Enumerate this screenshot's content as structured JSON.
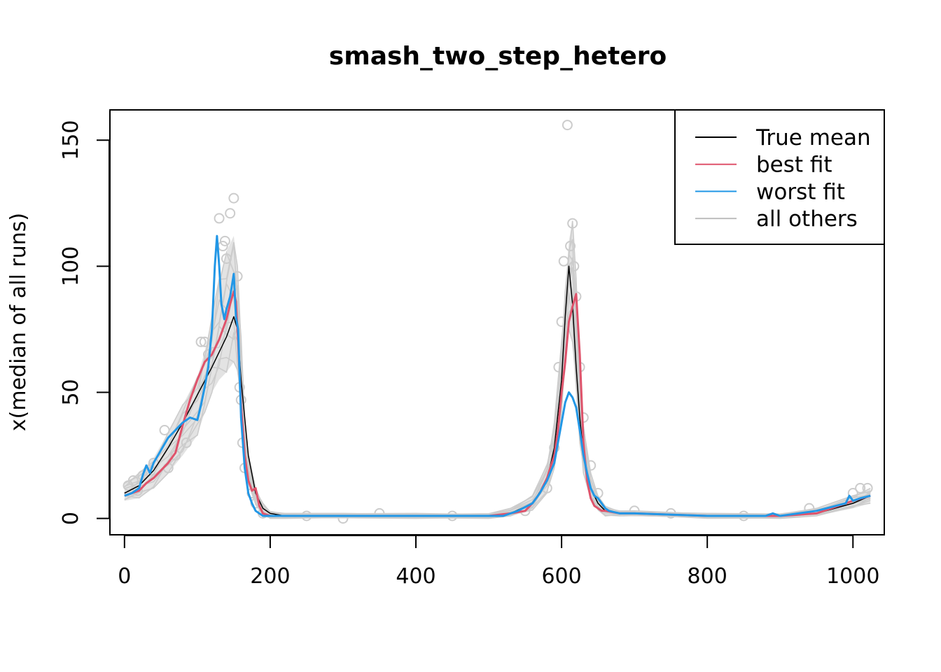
{
  "chart_data": {
    "type": "line",
    "title": "smash_two_step_hetero",
    "xlabel": "",
    "ylabel": "x(median of all runs)",
    "xlim": [
      -20,
      1043
    ],
    "ylim": [
      -6.5,
      162
    ],
    "xticks": [
      "0",
      "200",
      "400",
      "600",
      "800",
      "1000"
    ],
    "yticks": [
      "0",
      "50",
      "100",
      "150"
    ],
    "grid": false,
    "legend_position": "top-right",
    "legend": [
      {
        "label": "True mean",
        "color": "#000000"
      },
      {
        "label": "best fit",
        "color": "#DF536B"
      },
      {
        "label": "worst fit",
        "color": "#2297E6"
      },
      {
        "label": "all others",
        "color": "#BEBEBE"
      }
    ],
    "series": [
      {
        "name": "True mean",
        "color": "#000000",
        "x": [
          0,
          20,
          40,
          60,
          80,
          100,
          120,
          130,
          140,
          150,
          155,
          160,
          170,
          180,
          190,
          200,
          220,
          300,
          400,
          500,
          530,
          560,
          580,
          590,
          600,
          605,
          610,
          615,
          620,
          625,
          630,
          640,
          650,
          660,
          680,
          700,
          800,
          900,
          950,
          1000,
          1024
        ],
        "y": [
          10,
          13,
          19,
          28,
          38,
          49,
          60,
          66,
          72,
          80,
          75,
          55,
          25,
          10,
          4,
          2,
          1,
          1,
          1,
          1,
          2,
          6,
          15,
          28,
          55,
          80,
          100,
          85,
          60,
          40,
          25,
          12,
          6,
          3,
          2,
          2,
          1,
          1,
          2,
          6,
          9
        ]
      },
      {
        "name": "best fit",
        "color": "#DF536B",
        "x": [
          0,
          10,
          20,
          30,
          40,
          50,
          60,
          70,
          80,
          90,
          100,
          110,
          120,
          130,
          135,
          140,
          145,
          150,
          153,
          156,
          160,
          165,
          170,
          175,
          180,
          185,
          190,
          200,
          220,
          300,
          400,
          500,
          530,
          550,
          560,
          570,
          580,
          590,
          595,
          600,
          605,
          610,
          615,
          620,
          625,
          630,
          635,
          640,
          645,
          650,
          655,
          660,
          680,
          700,
          800,
          900,
          950,
          1000,
          1024
        ],
        "y": [
          9,
          10,
          11,
          14,
          16,
          19,
          22,
          26,
          37,
          47,
          55,
          62,
          65,
          71,
          75,
          79,
          85,
          90,
          86,
          70,
          45,
          25,
          15,
          11,
          12,
          5,
          2,
          1,
          1,
          1,
          1,
          1,
          2,
          3,
          6,
          10,
          16,
          25,
          35,
          50,
          62,
          78,
          84,
          89,
          65,
          30,
          15,
          8,
          5,
          4,
          3,
          3,
          2,
          2,
          1,
          1,
          2,
          7,
          9
        ]
      },
      {
        "name": "worst fit",
        "color": "#2297E6",
        "x": [
          0,
          10,
          20,
          25,
          30,
          35,
          40,
          50,
          60,
          70,
          80,
          90,
          100,
          105,
          110,
          115,
          120,
          124,
          127,
          130,
          133,
          137,
          140,
          145,
          150,
          153,
          156,
          160,
          165,
          170,
          175,
          180,
          190,
          200,
          220,
          300,
          400,
          500,
          520,
          540,
          560,
          570,
          580,
          590,
          595,
          600,
          605,
          610,
          615,
          620,
          625,
          630,
          635,
          640,
          645,
          650,
          655,
          660,
          665,
          680,
          700,
          800,
          880,
          890,
          900,
          950,
          990,
          995,
          1000,
          1010,
          1024
        ],
        "y": [
          9,
          10,
          12,
          17,
          21,
          18,
          22,
          27,
          32,
          35,
          38,
          40,
          39,
          45,
          52,
          60,
          75,
          100,
          112,
          100,
          85,
          79,
          83,
          88,
          97,
          80,
          75,
          40,
          20,
          10,
          6,
          3,
          1,
          1,
          1,
          1,
          1,
          1,
          1,
          3,
          6,
          10,
          15,
          22,
          30,
          38,
          46,
          50,
          48,
          44,
          35,
          25,
          18,
          12,
          9,
          8,
          6,
          4,
          3,
          2,
          2,
          1,
          1,
          2,
          1,
          3,
          6,
          9,
          7,
          8,
          9
        ]
      }
    ],
    "others_band": {
      "name": "all others",
      "color": "#CCCCCC",
      "x": [
        0,
        20,
        40,
        60,
        80,
        100,
        110,
        120,
        130,
        140,
        150,
        155,
        160,
        165,
        170,
        180,
        190,
        200,
        220,
        300,
        400,
        500,
        530,
        560,
        580,
        590,
        600,
        605,
        610,
        615,
        620,
        625,
        630,
        640,
        650,
        660,
        680,
        700,
        800,
        900,
        950,
        1000,
        1024
      ],
      "lower": [
        7,
        8,
        12,
        18,
        25,
        33,
        42,
        50,
        55,
        58,
        62,
        58,
        42,
        22,
        14,
        5,
        1,
        0,
        0,
        0,
        0,
        0,
        1,
        3,
        10,
        20,
        40,
        60,
        75,
        70,
        48,
        30,
        18,
        8,
        3,
        1,
        1,
        1,
        0,
        0,
        1,
        4,
        6
      ],
      "upper": [
        14,
        18,
        24,
        34,
        45,
        56,
        66,
        80,
        95,
        106,
        112,
        100,
        72,
        40,
        25,
        12,
        6,
        3,
        2,
        2,
        2,
        2,
        4,
        9,
        22,
        38,
        70,
        90,
        110,
        118,
        95,
        62,
        38,
        18,
        9,
        5,
        3,
        3,
        2,
        2,
        4,
        9,
        12
      ]
    },
    "outlier_points": {
      "color": "#CCCCCC",
      "x": [
        5,
        12,
        18,
        25,
        40,
        55,
        60,
        70,
        85,
        105,
        110,
        115,
        130,
        135,
        138,
        140,
        145,
        150,
        155,
        158,
        160,
        162,
        165,
        175,
        180,
        190,
        250,
        300,
        350,
        450,
        550,
        580,
        590,
        596,
        600,
        603,
        608,
        612,
        615,
        617,
        620,
        625,
        630,
        640,
        650,
        700,
        750,
        850,
        940,
        1000,
        1010,
        1020
      ],
      "y": [
        13,
        15,
        11,
        17,
        22,
        35,
        20,
        25,
        30,
        70,
        70,
        65,
        119,
        108,
        110,
        103,
        121,
        127,
        96,
        52,
        47,
        30,
        20,
        10,
        6,
        2,
        1,
        0,
        2,
        1,
        3,
        12,
        28,
        60,
        78,
        102,
        156,
        108,
        117,
        100,
        88,
        60,
        40,
        21,
        10,
        3,
        2,
        1,
        4,
        10,
        12,
        12
      ]
    }
  }
}
